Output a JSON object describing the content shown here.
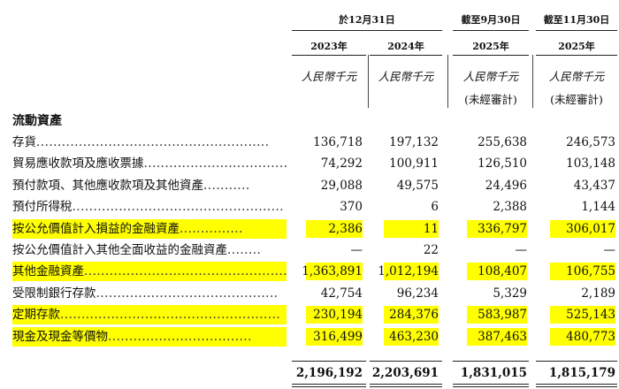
{
  "header": {
    "group1": "於12月31日",
    "group2": "截至9月30日",
    "group3": "截至11月30日",
    "years": [
      "2023年",
      "2024年",
      "2025年",
      "2025年"
    ],
    "unit": "人民幣千元",
    "unaudited": "(未經審計)"
  },
  "section_title": "流動資產",
  "rows": [
    {
      "label": "存貨",
      "dots": ".......................................................",
      "values": [
        "136,718",
        "197,132",
        "255,638",
        "246,573"
      ],
      "highlight": false
    },
    {
      "label": "貿易應收款項及應收票據",
      "dots": "...................................",
      "values": [
        "74,292",
        "100,911",
        "126,510",
        "103,148"
      ],
      "highlight": false
    },
    {
      "label": "預付款項、其他應收款項及其他資產",
      "dots": "...........",
      "values": [
        "29,088",
        "49,575",
        "24,496",
        "43,437"
      ],
      "highlight": false
    },
    {
      "label": "預付所得稅",
      "dots": "..................................................",
      "values": [
        "370",
        "6",
        "2,388",
        "1,144"
      ],
      "highlight": false
    },
    {
      "label": "按公允價值計入損益的金融資產",
      "dots": "...............",
      "values": [
        "2,386",
        "11",
        "336,797",
        "306,017"
      ],
      "highlight": true
    },
    {
      "label": "按公允價值計入其他全面收益的金融資產",
      "dots": "........",
      "values": [
        "—",
        "22",
        "—",
        "—"
      ],
      "highlight": false
    },
    {
      "label": "其他金融資產",
      "dots": ".................................................",
      "values": [
        "1,363,891",
        "1,012,194",
        "108,407",
        "106,755"
      ],
      "highlight": true
    },
    {
      "label": "受限制銀行存款",
      "dots": "...........................................",
      "values": [
        "42,754",
        "96,234",
        "5,329",
        "2,189"
      ],
      "highlight": false
    },
    {
      "label": "定期存款",
      "dots": "....................................................",
      "values": [
        "230,194",
        "284,376",
        "583,987",
        "525,143"
      ],
      "highlight": true
    },
    {
      "label": "現金及現金等價物",
      "dots": "..................................",
      "values": [
        "316,499",
        "463,230",
        "387,463",
        "480,773"
      ],
      "highlight": true
    }
  ],
  "totals": [
    "2,196,192",
    "2,203,691",
    "1,831,015",
    "1,815,179"
  ]
}
